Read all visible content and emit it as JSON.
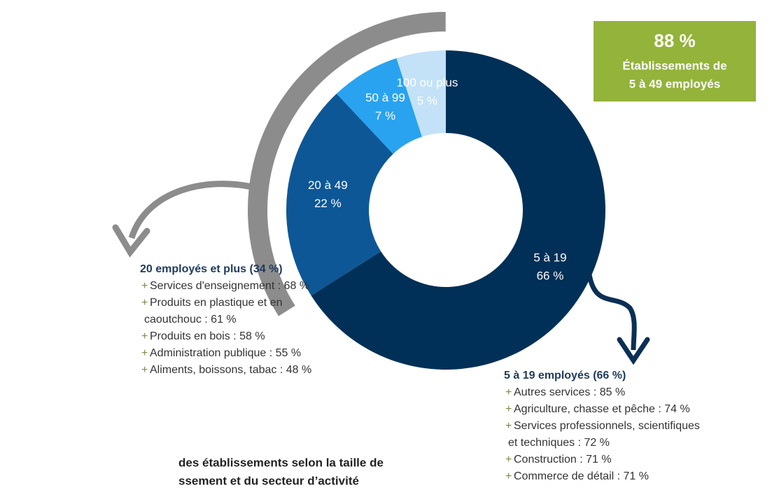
{
  "chart_data": {
    "type": "donut",
    "categories": [
      "5 à 19",
      "20 à 49",
      "50 à 99",
      "100 ou plus"
    ],
    "values": [
      66,
      22,
      7,
      5
    ],
    "value_labels": [
      "66 %",
      "22 %",
      "7 %",
      "5 %"
    ],
    "colors": [
      "#003057",
      "#0d5797",
      "#29a3ef",
      "#c3e2f7"
    ]
  },
  "highlight": {
    "value": "88 %",
    "lines": [
      "Établissements de",
      "5 à 49 employés"
    ]
  },
  "left_list": {
    "heading": "20 employés et plus (34 %)",
    "items": [
      [
        "Services d'enseignement : 68 %"
      ],
      [
        "Produits en plastique et en",
        "caoutchouc : 61 %"
      ],
      [
        "Produits en bois : 58 %"
      ],
      [
        "Administration publique : 55 %"
      ],
      [
        "Aliments, boissons, tabac : 48 %"
      ]
    ]
  },
  "right_list": {
    "heading": "5 à 19 employés (66 %)",
    "items": [
      [
        "Autres services : 85 %"
      ],
      [
        "Agriculture, chasse et pêche : 74 %"
      ],
      [
        "Services professionnels, scientifiques",
        "et techniques : 72 %"
      ],
      [
        "Construction : 71 %"
      ],
      [
        "Commerce de détail : 71 %"
      ]
    ]
  },
  "bullet": "+",
  "caption": [
    "des établissements selon la taille de",
    "ssement et du secteur d’activité"
  ]
}
